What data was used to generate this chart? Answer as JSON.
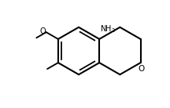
{
  "background_color": "#ffffff",
  "line_color": "#000000",
  "line_width": 1.5,
  "font_size": 7,
  "figsize": [
    2.16,
    1.38
  ],
  "dpi": 100
}
